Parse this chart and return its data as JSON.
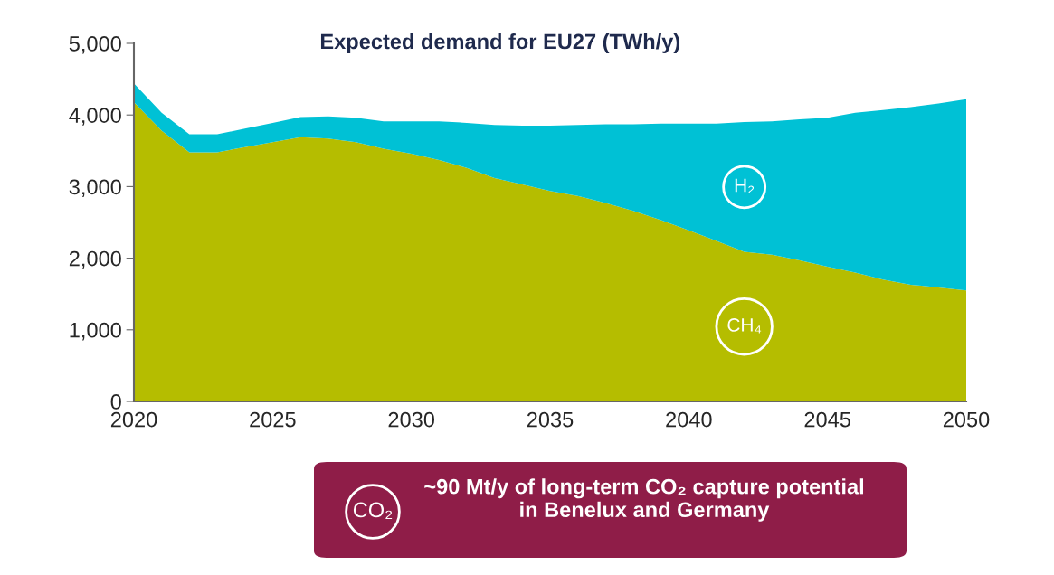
{
  "chart_data": {
    "type": "area",
    "stacked": true,
    "title": "Expected demand for EU27 (TWh/y)",
    "x": [
      2020,
      2021,
      2022,
      2023,
      2024,
      2025,
      2026,
      2027,
      2028,
      2029,
      2030,
      2031,
      2032,
      2033,
      2034,
      2035,
      2036,
      2037,
      2038,
      2039,
      2040,
      2041,
      2042,
      2043,
      2044,
      2045,
      2046,
      2047,
      2048,
      2049,
      2050
    ],
    "series": [
      {
        "name": "CH₄",
        "color": "#b5bd00",
        "values": [
          4180,
          3780,
          3480,
          3480,
          3550,
          3620,
          3690,
          3670,
          3620,
          3530,
          3460,
          3370,
          3260,
          3120,
          3030,
          2940,
          2870,
          2770,
          2660,
          2530,
          2390,
          2240,
          2090,
          2050,
          1970,
          1880,
          1800,
          1700,
          1630,
          1590,
          1550
        ]
      },
      {
        "name": "H₂",
        "color": "#00c1d5",
        "values": [
          260,
          250,
          250,
          250,
          260,
          270,
          280,
          310,
          340,
          380,
          450,
          540,
          630,
          740,
          820,
          910,
          990,
          1100,
          1210,
          1350,
          1490,
          1640,
          1810,
          1860,
          1970,
          2080,
          2230,
          2370,
          2480,
          2570,
          2670
        ]
      }
    ],
    "xlim": [
      2020,
      2050
    ],
    "xticks": [
      2020,
      2025,
      2030,
      2035,
      2040,
      2045,
      2050
    ],
    "ylim": [
      0,
      5000
    ],
    "yticks": [
      0,
      {
        "value": 1000,
        "label": "1,000"
      },
      {
        "value": 2000,
        "label": "2,000"
      },
      {
        "value": 3000,
        "label": "3,000"
      },
      {
        "value": 4000,
        "label": "4,000"
      },
      {
        "value": 5000,
        "label": "5,000"
      }
    ],
    "grid": false,
    "legend": false,
    "annotations": [
      "CO₂",
      "~90 Mt/y of long-term CO₂ capture potential in Benelux and Germany"
    ]
  }
}
